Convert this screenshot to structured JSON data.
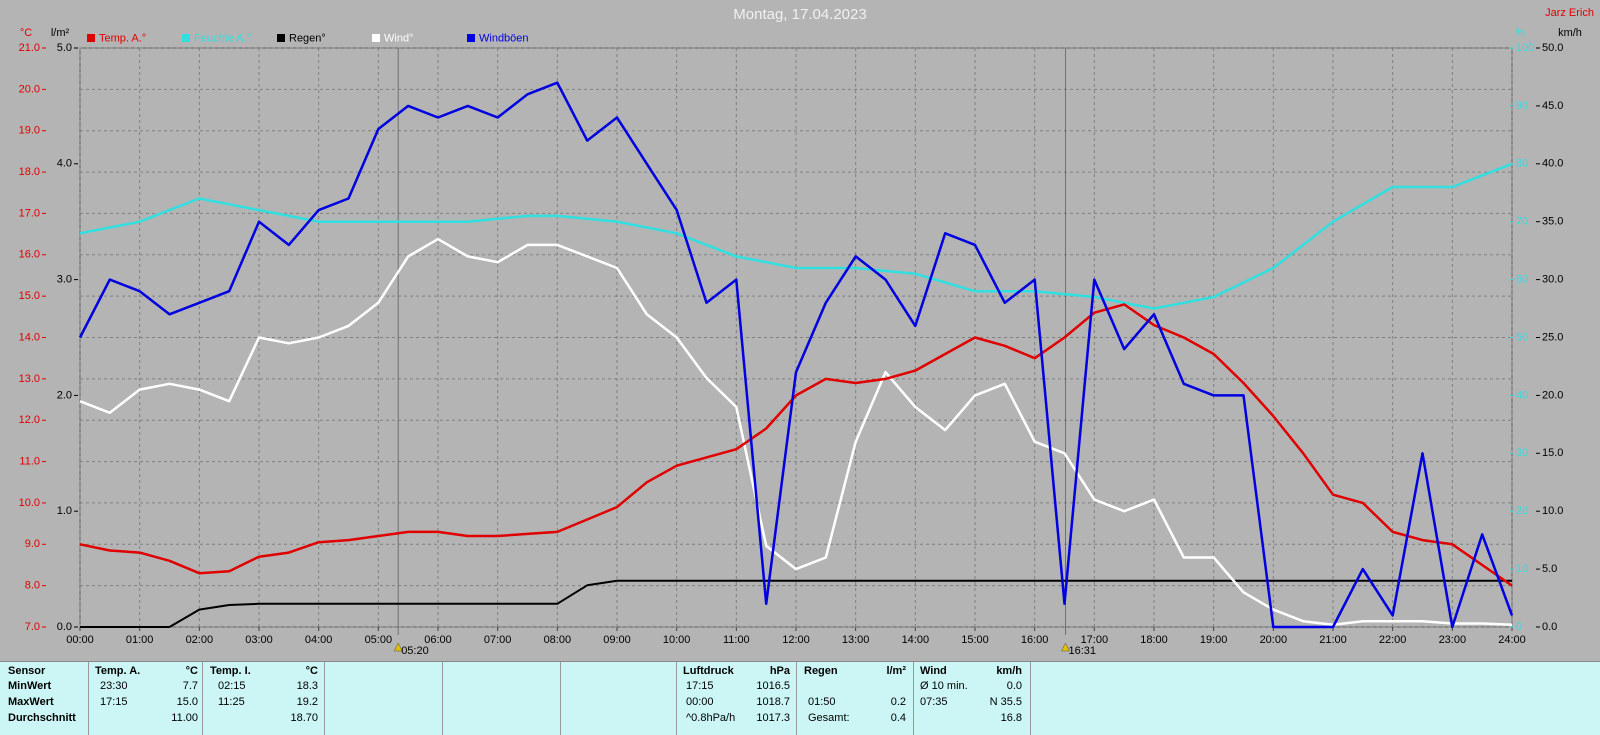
{
  "chart_data": {
    "type": "line",
    "title": "Montag, 17.04.2023",
    "author": "Jarz Erich",
    "y_unit": "°C",
    "y2_unit": "%",
    "y3_unit": "l/m²",
    "y4_unit": "km/h",
    "x": [
      0,
      0.5,
      1,
      1.5,
      2,
      2.5,
      3,
      3.5,
      4,
      4.5,
      5,
      5.5,
      6,
      6.5,
      7,
      7.5,
      8,
      8.5,
      9,
      9.5,
      10,
      10.5,
      11,
      11.5,
      12,
      12.5,
      13,
      13.5,
      14,
      14.5,
      15,
      15.5,
      16,
      16.5,
      17,
      17.5,
      18,
      18.5,
      19,
      19.5,
      20,
      20.5,
      21,
      21.5,
      22,
      22.5,
      23,
      23.5,
      24
    ],
    "xlim": [
      0,
      24
    ],
    "xticks": [
      {
        "value": 0,
        "label": "00:00"
      },
      {
        "value": 1,
        "label": "01:00"
      },
      {
        "value": 2,
        "label": "02:00"
      },
      {
        "value": 3,
        "label": "03:00"
      },
      {
        "value": 4,
        "label": "04:00"
      },
      {
        "value": 5,
        "label": "05:00"
      },
      {
        "value": 6,
        "label": "06:00"
      },
      {
        "value": 7,
        "label": "07:00"
      },
      {
        "value": 8,
        "label": "08:00"
      },
      {
        "value": 9,
        "label": "09:00"
      },
      {
        "value": 10,
        "label": "10:00"
      },
      {
        "value": 11,
        "label": "11:00"
      },
      {
        "value": 12,
        "label": "12:00"
      },
      {
        "value": 13,
        "label": "13:00"
      },
      {
        "value": 14,
        "label": "14:00"
      },
      {
        "value": 15,
        "label": "15:00"
      },
      {
        "value": 16,
        "label": "16:00"
      },
      {
        "value": 17,
        "label": "17:00"
      },
      {
        "value": 18,
        "label": "18:00"
      },
      {
        "value": 19,
        "label": "19:00"
      },
      {
        "value": 20,
        "label": "20:00"
      },
      {
        "value": 21,
        "label": "21:00"
      },
      {
        "value": 22,
        "label": "22:00"
      },
      {
        "value": 23,
        "label": "23:00"
      },
      {
        "value": 24,
        "label": "24:00"
      }
    ],
    "ylim": [
      7,
      21
    ],
    "yticks": [
      {
        "value": 7,
        "label": "7.0"
      },
      {
        "value": 8,
        "label": "8.0"
      },
      {
        "value": 9,
        "label": "9.0"
      },
      {
        "value": 10,
        "label": "10.0"
      },
      {
        "value": 11,
        "label": "11.0"
      },
      {
        "value": 12,
        "label": "12.0"
      },
      {
        "value": 13,
        "label": "13.0"
      },
      {
        "value": 14,
        "label": "14.0"
      },
      {
        "value": 15,
        "label": "15.0"
      },
      {
        "value": 16,
        "label": "16.0"
      },
      {
        "value": 17,
        "label": "17.0"
      },
      {
        "value": 18,
        "label": "18.0"
      },
      {
        "value": 19,
        "label": "19.0"
      },
      {
        "value": 20,
        "label": "20.0"
      },
      {
        "value": 21,
        "label": "21.0"
      }
    ],
    "y2lim": [
      0,
      100
    ],
    "y2ticks": [
      0,
      10,
      20,
      30,
      40,
      50,
      60,
      70,
      80,
      90,
      100
    ],
    "y3lim": [
      0,
      5
    ],
    "y3ticks": [
      {
        "value": 0,
        "label": "0.0"
      },
      {
        "value": 1,
        "label": "1.0"
      },
      {
        "value": 2,
        "label": "2.0"
      },
      {
        "value": 3,
        "label": "3.0"
      },
      {
        "value": 4,
        "label": "4.0"
      },
      {
        "value": 5,
        "label": "5.0"
      }
    ],
    "y4lim": [
      0,
      50
    ],
    "y4ticks": [
      {
        "value": 0,
        "label": "0.0"
      },
      {
        "value": 5,
        "label": "5.0"
      },
      {
        "value": 10,
        "label": "10.0"
      },
      {
        "value": 15,
        "label": "15.0"
      },
      {
        "value": 20,
        "label": "20.0"
      },
      {
        "value": 25,
        "label": "25.0"
      },
      {
        "value": 30,
        "label": "30.0"
      },
      {
        "value": 35,
        "label": "35.0"
      },
      {
        "value": 40,
        "label": "40.0"
      },
      {
        "value": 45,
        "label": "45.0"
      },
      {
        "value": 50,
        "label": "50.0"
      }
    ],
    "grid": true,
    "series": [
      {
        "name": "Temp. A.°",
        "color": "#e00000",
        "axis": "y",
        "values": [
          9.0,
          8.85,
          8.8,
          8.6,
          8.3,
          8.35,
          8.7,
          8.8,
          9.05,
          9.1,
          9.2,
          9.3,
          9.3,
          9.2,
          9.2,
          9.25,
          9.3,
          9.6,
          9.9,
          10.5,
          10.9,
          11.1,
          11.3,
          11.8,
          12.6,
          13.0,
          12.9,
          13.0,
          13.2,
          13.6,
          14.0,
          13.8,
          13.5,
          14.0,
          14.6,
          14.8,
          14.3,
          14.0,
          13.6,
          12.9,
          12.1,
          11.2,
          10.2,
          10.0,
          9.3,
          9.1,
          9.0,
          8.5,
          8.0
        ]
      },
      {
        "name": "Feuchte A.°",
        "color": "#30e0e0",
        "axis": "y2",
        "values": [
          68,
          69,
          70,
          72,
          74,
          73,
          72,
          71,
          70,
          70,
          70,
          70,
          70,
          70,
          70.5,
          71,
          71,
          70.5,
          70,
          69,
          68,
          66,
          64,
          63,
          62,
          62,
          62,
          61.5,
          61,
          59.5,
          58,
          58,
          58,
          57.5,
          57,
          56,
          55,
          56,
          57,
          59.5,
          62,
          66,
          70,
          73,
          76,
          76,
          76,
          78,
          80
        ]
      },
      {
        "name": "Regen°",
        "color": "#000000",
        "axis": "y3",
        "values": [
          0,
          0,
          0,
          0,
          0.15,
          0.19,
          0.2,
          0.2,
          0.2,
          0.2,
          0.2,
          0.2,
          0.2,
          0.2,
          0.2,
          0.2,
          0.2,
          0.36,
          0.4,
          0.4,
          0.4,
          0.4,
          0.4,
          0.4,
          0.4,
          0.4,
          0.4,
          0.4,
          0.4,
          0.4,
          0.4,
          0.4,
          0.4,
          0.4,
          0.4,
          0.4,
          0.4,
          0.4,
          0.4,
          0.4,
          0.4,
          0.4,
          0.4,
          0.4,
          0.4,
          0.4,
          0.4,
          0.4,
          0.4
        ]
      },
      {
        "name": "Wind°",
        "color": "#ffffff",
        "axis": "y4",
        "values": [
          19.5,
          18.5,
          20.5,
          21,
          20.5,
          19.5,
          25,
          24.5,
          25,
          26,
          28,
          32,
          33.5,
          32,
          31.5,
          33,
          33,
          32,
          31,
          27,
          25,
          21.5,
          19,
          7,
          5,
          6,
          16,
          22,
          19,
          17,
          20,
          21,
          16,
          15,
          11,
          10,
          11,
          6,
          6,
          3,
          1.5,
          0.5,
          0.2,
          0.5,
          0.5,
          0.5,
          0.3,
          0.3,
          0.2
        ]
      },
      {
        "name": "Windböen",
        "color": "#0000e0",
        "axis": "y4",
        "values": [
          25,
          30,
          29,
          27,
          28,
          29,
          35,
          33,
          36,
          37,
          43,
          45,
          44,
          45,
          44,
          46,
          47,
          42,
          44,
          40,
          36,
          28,
          30,
          2,
          22,
          28,
          32,
          30,
          26,
          34,
          33,
          28,
          30,
          2,
          30,
          24,
          27,
          21,
          20,
          20,
          0,
          0,
          0,
          5,
          1,
          15,
          0,
          8,
          1
        ]
      }
    ],
    "annotations": [
      {
        "x": 5.333,
        "label": "05:20"
      },
      {
        "x": 16.517,
        "label": "16:31"
      }
    ]
  },
  "stats": {
    "left": {
      "header": [
        "Sensor",
        "Temp. A.",
        "°C",
        "Temp. I.",
        "°C"
      ],
      "rows": [
        [
          "MinWert",
          "23:30",
          "7.7",
          "02:15",
          "18.3"
        ],
        [
          "MaxWert",
          "17:15",
          "15.0",
          "11:25",
          "19.2"
        ],
        [
          "Durchschnitt",
          null,
          "11.00",
          null,
          "18.70"
        ]
      ]
    },
    "right": {
      "header": [
        "Luftdruck",
        "hPa",
        "Regen",
        "l/m²",
        "Wind",
        "km/h"
      ],
      "rows": [
        [
          "17:15",
          "1016.5",
          null,
          null,
          "Ø 10 min.",
          "0.0"
        ],
        [
          "00:00",
          "1018.7",
          "01:50",
          "0.2",
          "07:35",
          "N 35.5"
        ],
        [
          "^0.8hPa/h",
          "1017.3",
          "Gesamt:",
          "0.4",
          null,
          "16.8"
        ]
      ]
    }
  }
}
